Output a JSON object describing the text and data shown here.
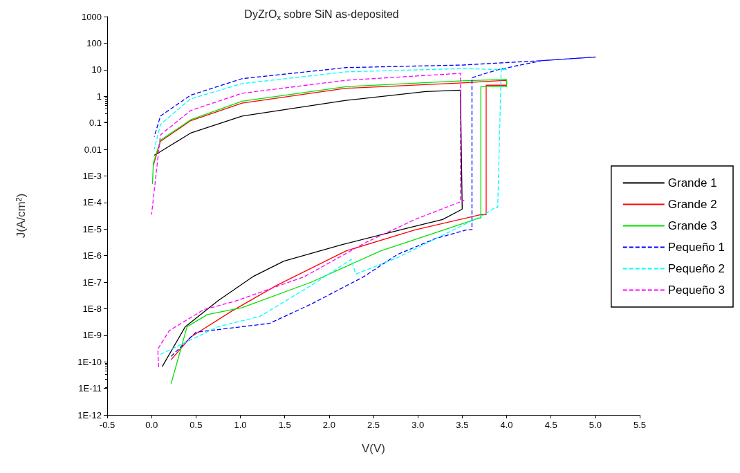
{
  "chart_data": {
    "type": "line",
    "title": "DyZrO$_{x}$ sobre SiN as-deposited",
    "xlabel": "V(V)",
    "ylabel": "J(A/cm$^{2}$)",
    "xlim": [
      -0.5,
      5.5
    ],
    "xticks": [
      -0.5,
      {
        "value": 0,
        "label": "0.0"
      },
      0.5,
      {
        "value": 1,
        "label": "1.0"
      },
      1.5,
      {
        "value": 2,
        "label": "2.0"
      },
      2.5,
      {
        "value": 3,
        "label": "3.0"
      },
      3.5,
      {
        "value": 4,
        "label": "4.0"
      },
      4.5,
      {
        "value": 5,
        "label": "5.0"
      },
      5.5
    ],
    "ylim": [
      1e-12,
      1000
    ],
    "yticks": [
      {
        "value": 1e-12,
        "label": "1E-12"
      },
      {
        "value": 1e-11,
        "label": "1E-11"
      },
      {
        "value": 1e-10,
        "label": "1E-10"
      },
      {
        "value": 1e-09,
        "label": "1E-9"
      },
      {
        "value": 1e-08,
        "label": "1E-8"
      },
      {
        "value": 1e-07,
        "label": "1E-7"
      },
      {
        "value": 1e-06,
        "label": "1E-6"
      },
      {
        "value": 1e-05,
        "label": "1E-5"
      },
      {
        "value": 0.0001,
        "label": "1E-4"
      },
      {
        "value": 0.001,
        "label": "1E-3"
      },
      0.01,
      0.1,
      1,
      10,
      100,
      1000
    ],
    "log": "y",
    "grid": false,
    "legend": "right",
    "marker": "none",
    "series": [
      {
        "name": "Grande 1",
        "color": "#000000",
        "line_style": "solid",
        "x": [
          0.12,
          0.38,
          0.75,
          1.14,
          1.49,
          2.15,
          2.89,
          3.28,
          3.5,
          3.48,
          3.09,
          2.19,
          1.02,
          0.44,
          0.09,
          0.03
        ],
        "values": [
          6.6e-11,
          2.1e-09,
          2e-08,
          1.6e-07,
          6.2e-07,
          2.6e-06,
          1.1e-05,
          2.3e-05,
          5.6e-05,
          1.7,
          1.5,
          0.7,
          0.18,
          0.041,
          0.0079,
          0.006
        ]
      },
      {
        "name": "Grande 2",
        "color": "#ff0000",
        "line_style": "solid",
        "x": [
          0.22,
          0.44,
          0.9,
          1.41,
          2.19,
          2.97,
          3.71,
          3.77,
          3.77,
          4.0,
          4.0,
          3.5,
          2.19,
          1.02,
          0.44,
          0.1,
          0.02
        ],
        "values": [
          1.2e-10,
          8.5e-10,
          8e-09,
          7.6e-08,
          1.5e-06,
          9.3e-06,
          3.5e-05,
          3.5e-05,
          2.6,
          2.6,
          4,
          3.2,
          2,
          0.55,
          0.12,
          0.02,
          0.0025
        ]
      },
      {
        "name": "Grande 3",
        "color": "#00e000",
        "line_style": "solid",
        "x": [
          0.22,
          0.4,
          0.63,
          1.02,
          1.8,
          2.58,
          3.36,
          3.69,
          3.71,
          3.71,
          4.0,
          4.0,
          3.5,
          2.19,
          1.02,
          0.44,
          0.1,
          0.02,
          0.01
        ],
        "values": [
          1.5e-11,
          2.1e-09,
          6e-09,
          1.1e-08,
          1e-07,
          1.5e-06,
          1.1e-05,
          2.6e-05,
          2.6e-05,
          2.3,
          2.3,
          4.3,
          3.8,
          2.3,
          0.65,
          0.13,
          0.022,
          0.003,
          0.0005
        ]
      },
      {
        "name": "Pequeño 1",
        "color": "#0000ff",
        "line_style": "dashed",
        "x": [
          0.22,
          0.5,
          1.33,
          1.8,
          2.39,
          2.77,
          3.2,
          3.55,
          3.61,
          3.61,
          3.9,
          4.4,
          5.0,
          4.4,
          3.5,
          2.19,
          1.02,
          0.44,
          0.1,
          0.03
        ],
        "values": [
          1.6e-10,
          1.3e-09,
          2.8e-09,
          1.5e-08,
          1.6e-07,
          1.1e-06,
          4.4e-06,
          9.3e-06,
          9.3e-06,
          5,
          10,
          22,
          30,
          22,
          15,
          12,
          4.6,
          1.1,
          0.18,
          0.03
        ]
      },
      {
        "name": "Pequeño 2",
        "color": "#00ffff",
        "line_style": "dashed",
        "x": [
          0.1,
          0.75,
          1.22,
          1.8,
          2.25,
          2.3,
          2.77,
          3.36,
          3.75,
          3.87,
          3.9,
          3.94,
          4.0,
          3.5,
          2.19,
          1.02,
          0.44,
          0.1,
          0.03
        ],
        "values": [
          1.9e-10,
          2.1e-09,
          5.1e-09,
          7.6e-08,
          7.2e-07,
          2e-07,
          8.3e-07,
          7.9e-06,
          3.5e-05,
          6.5e-05,
          6.5e-05,
          12,
          10,
          11,
          8.3,
          3,
          0.8,
          0.087,
          0.01
        ]
      },
      {
        "name": "Pequeño 3",
        "color": "#ff00ff",
        "line_style": "dashed",
        "x": [
          0.08,
          0.07,
          0.2,
          0.59,
          0.94,
          1.72,
          2.42,
          2.97,
          3.52,
          3.48,
          3.48,
          2.19,
          1.02,
          0.44,
          0.1,
          0.0
        ],
        "values": [
          6.3e-11,
          3e-10,
          1.5e-09,
          9.3e-09,
          1.9e-08,
          1.6e-07,
          3.2e-06,
          2.3e-05,
          0.00012,
          0.00012,
          7.3,
          4,
          1.3,
          0.29,
          0.035,
          3.5e-05
        ]
      }
    ]
  }
}
